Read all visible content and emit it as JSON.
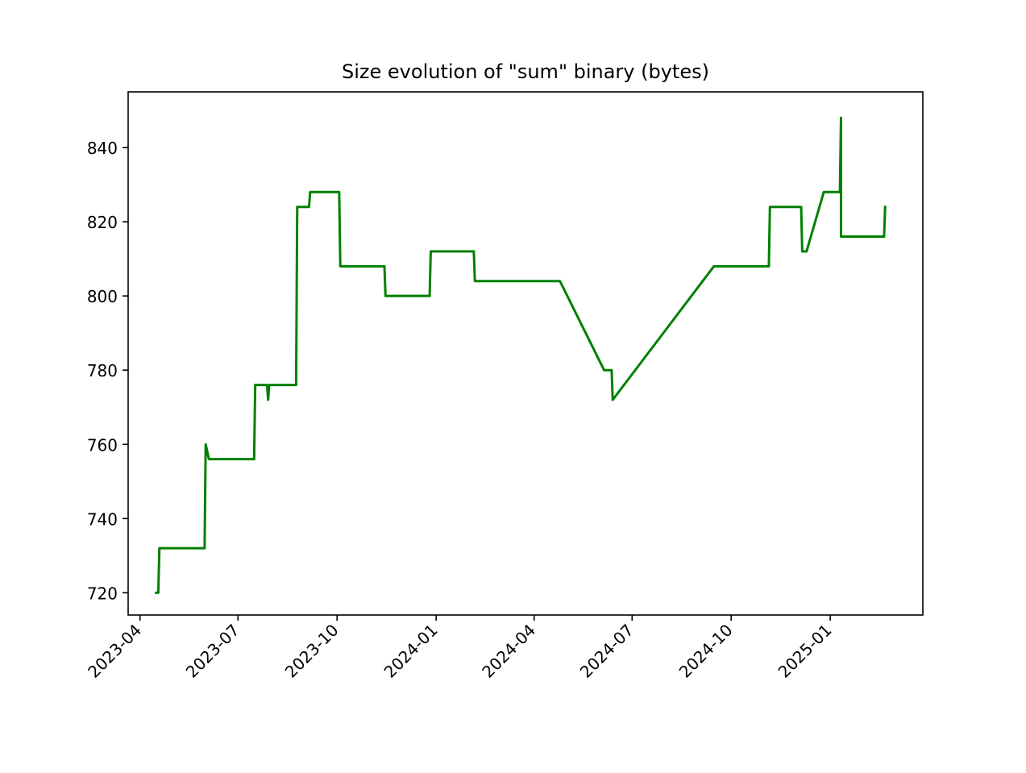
{
  "chart_data": {
    "type": "line",
    "title": "Size evolution of \"sum\" binary (bytes)",
    "xlabel": "",
    "ylabel": "",
    "x_axis_type": "date",
    "xlim": [
      "2023-03-21",
      "2025-03-28"
    ],
    "ylim": [
      714,
      855
    ],
    "x_ticks": [
      "2023-04",
      "2023-07",
      "2023-10",
      "2024-01",
      "2024-04",
      "2024-07",
      "2024-10",
      "2025-01"
    ],
    "y_ticks": [
      720,
      740,
      760,
      780,
      800,
      820,
      840
    ],
    "grid": false,
    "legend": "none",
    "series": [
      {
        "color": "#008000",
        "x": [
          "2023-04-16",
          "2023-04-18",
          "2023-04-19",
          "2023-05-31",
          "2023-06-01",
          "2023-06-04",
          "2023-07-16",
          "2023-07-17",
          "2023-07-28",
          "2023-07-29",
          "2023-07-30",
          "2023-08-24",
          "2023-08-25",
          "2023-09-05",
          "2023-09-06",
          "2023-10-03",
          "2023-10-04",
          "2023-11-14",
          "2023-11-15",
          "2023-12-26",
          "2023-12-27",
          "2024-02-05",
          "2024-02-06",
          "2024-04-25",
          "2024-06-05",
          "2024-06-12",
          "2024-06-13",
          "2024-09-15",
          "2024-11-05",
          "2024-11-06",
          "2024-12-05",
          "2024-12-06",
          "2024-12-10",
          "2024-12-26",
          "2025-01-10",
          "2025-01-11",
          "2025-01-11",
          "2025-01-12",
          "2025-02-20",
          "2025-02-21"
        ],
        "y": [
          720,
          720,
          732,
          732,
          760,
          756,
          756,
          776,
          776,
          772,
          776,
          776,
          824,
          824,
          828,
          828,
          808,
          808,
          800,
          800,
          812,
          812,
          804,
          804,
          780,
          780,
          772,
          808,
          808,
          824,
          824,
          812,
          812,
          828,
          828,
          848,
          816,
          816,
          816,
          824
        ]
      }
    ]
  }
}
